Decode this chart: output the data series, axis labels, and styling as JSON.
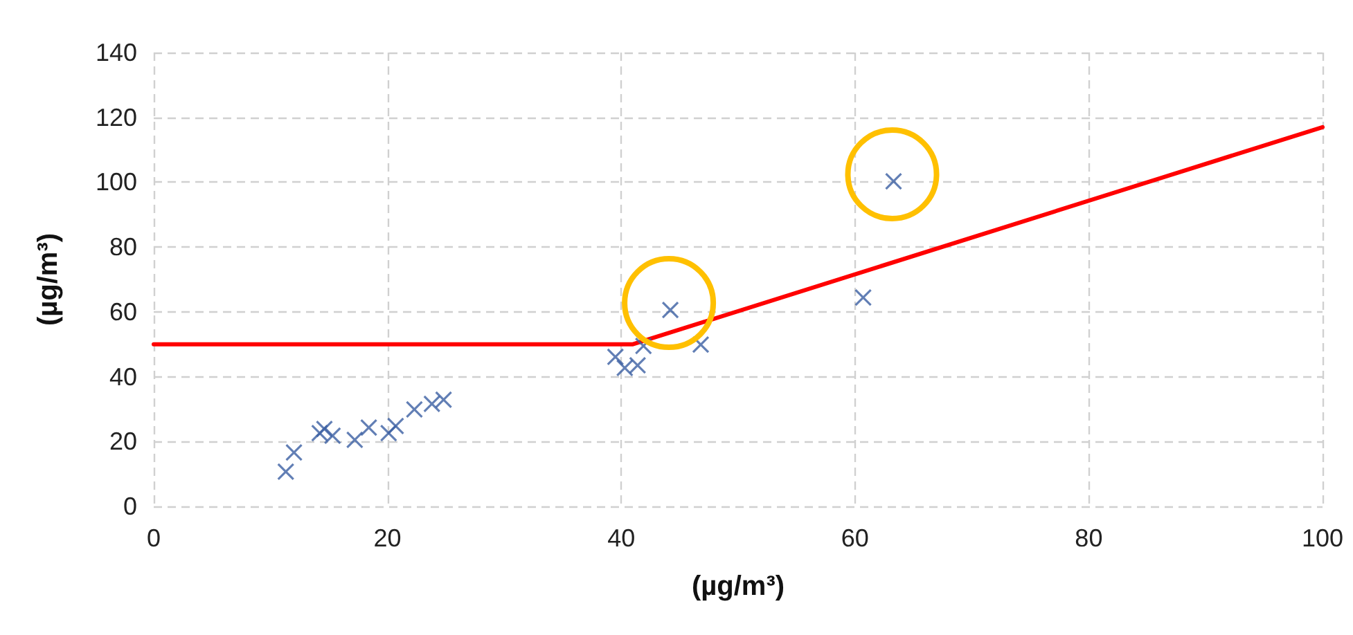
{
  "chart_data": {
    "type": "scatter",
    "xlabel": "(µg/m³)",
    "ylabel": "(µg/m³)",
    "series": [
      {
        "color": "#3b5fa3",
        "marker": "cross",
        "x": [
          11.3,
          12.0,
          14.2,
          14.6,
          15.3,
          17.2,
          18.4,
          20.1,
          20.7,
          22.3,
          23.8,
          24.8,
          39.5,
          40.3,
          41.4,
          41.9,
          44.2,
          46.8,
          60.7,
          63.3
        ],
        "values": [
          10.7,
          16.6,
          22.6,
          23.9,
          21.8,
          20.5,
          24.3,
          22.6,
          24.8,
          29.9,
          31.6,
          32.9,
          46.1,
          42.7,
          43.5,
          49.5,
          60.6,
          49.9,
          64.4,
          100.3
        ]
      },
      {
        "type": "line",
        "color": "#ff0000",
        "marker": "none",
        "line_style": "solid",
        "x": [
          0,
          41,
          100
        ],
        "values": [
          50,
          50,
          117
        ]
      }
    ],
    "xlim": [
      0,
      100
    ],
    "xticks": [
      0,
      20,
      40,
      60,
      80,
      100
    ],
    "ylim": [
      0,
      140
    ],
    "yticks": [
      0,
      20,
      40,
      60,
      80,
      100,
      120,
      140
    ],
    "grid": true
  }
}
